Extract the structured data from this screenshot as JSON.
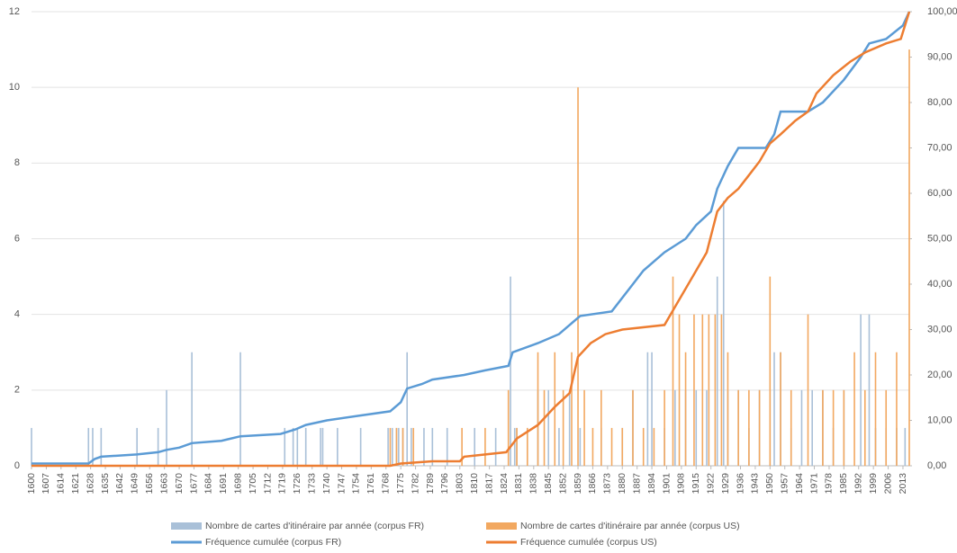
{
  "chart_data": {
    "type": "bar",
    "xlim": [
      1600,
      2016
    ],
    "xticks": [
      1600,
      1607,
      1614,
      1621,
      1628,
      1635,
      1642,
      1649,
      1656,
      1663,
      1670,
      1677,
      1684,
      1691,
      1698,
      1705,
      1712,
      1719,
      1726,
      1733,
      1740,
      1747,
      1754,
      1761,
      1768,
      1775,
      1782,
      1789,
      1796,
      1803,
      1810,
      1817,
      1824,
      1831,
      1838,
      1845,
      1852,
      1859,
      1866,
      1873,
      1880,
      1887,
      1894,
      1901,
      1908,
      1915,
      1922,
      1929,
      1936,
      1943,
      1950,
      1957,
      1964,
      1971,
      1978,
      1985,
      1992,
      1999,
      2006,
      2013
    ],
    "ylim": [
      0,
      12
    ],
    "yticks": [
      0,
      2,
      4,
      6,
      8,
      10,
      12
    ],
    "y2lim": [
      0,
      100
    ],
    "y2ticks": [
      {
        "value": 0,
        "label": "0,00"
      },
      {
        "value": 10,
        "label": "10,00"
      },
      {
        "value": 20,
        "label": "20,00"
      },
      {
        "value": 30,
        "label": "30,00"
      },
      {
        "value": 40,
        "label": "40,00"
      },
      {
        "value": 50,
        "label": "50,00"
      },
      {
        "value": 60,
        "label": "60,00"
      },
      {
        "value": 70,
        "label": "70,00"
      },
      {
        "value": 80,
        "label": "80,00"
      },
      {
        "value": 90,
        "label": "90,00"
      },
      {
        "value": 100,
        "label": "100,00"
      }
    ],
    "grid": true,
    "series": [
      {
        "name": "Nombre de cartes d'itinéraire par année (corpus FR)",
        "type": "bar",
        "color": "#a9c0d8",
        "x": [
          1600,
          1627,
          1629,
          1633,
          1650,
          1660,
          1664,
          1676,
          1699,
          1720,
          1724,
          1726,
          1730,
          1737,
          1738,
          1745,
          1756,
          1769,
          1771,
          1773,
          1774,
          1776,
          1778,
          1780,
          1786,
          1790,
          1797,
          1810,
          1820,
          1827,
          1829,
          1830,
          1835,
          1840,
          1845,
          1850,
          1855,
          1860,
          1870,
          1880,
          1885,
          1892,
          1894,
          1900,
          1905,
          1910,
          1915,
          1920,
          1925,
          1928,
          1930,
          1935,
          1940,
          1945,
          1950,
          1952,
          1955,
          1960,
          1965,
          1970,
          1975,
          1980,
          1985,
          1993,
          1997,
          2000,
          2005,
          2010,
          2014
        ],
        "values": [
          1,
          1,
          1,
          1,
          1,
          1,
          2,
          3,
          3,
          1,
          1,
          1,
          1,
          1,
          1,
          1,
          1,
          1,
          1,
          1,
          1,
          1,
          3,
          1,
          1,
          1,
          1,
          1,
          1,
          5,
          1,
          1,
          1,
          2,
          2,
          1,
          2,
          1,
          1,
          1,
          2,
          3,
          3,
          1,
          2,
          2,
          2,
          2,
          5,
          7,
          2,
          2,
          1,
          2,
          2,
          3,
          3,
          1,
          2,
          2,
          2,
          1,
          2,
          4,
          4,
          1,
          1,
          1,
          1
        ]
      },
      {
        "name": "Nombre de cartes d'itinéraire par année (corpus US)",
        "type": "bar",
        "color": "#f2a860",
        "x": [
          1770,
          1773,
          1776,
          1781,
          1804,
          1815,
          1826,
          1830,
          1835,
          1840,
          1843,
          1848,
          1852,
          1856,
          1859,
          1862,
          1866,
          1870,
          1875,
          1880,
          1885,
          1890,
          1895,
          1900,
          1904,
          1907,
          1910,
          1914,
          1918,
          1921,
          1924,
          1927,
          1930,
          1935,
          1940,
          1945,
          1950,
          1955,
          1960,
          1968,
          1975,
          1980,
          1985,
          1990,
          1995,
          2000,
          2005,
          2010,
          2016
        ],
        "values": [
          1,
          1,
          1,
          1,
          1,
          1,
          2,
          1,
          1,
          3,
          2,
          3,
          2,
          3,
          10,
          2,
          1,
          2,
          1,
          1,
          2,
          1,
          1,
          2,
          5,
          4,
          3,
          4,
          4,
          4,
          4,
          4,
          3,
          2,
          2,
          2,
          5,
          3,
          2,
          4,
          2,
          2,
          2,
          3,
          2,
          3,
          2,
          3,
          11
        ]
      },
      {
        "name": "Fréquence cumulée (corpus FR)",
        "type": "line",
        "axis": "y2",
        "color": "#5b9bd5",
        "x": [
          1600,
          1627,
          1630,
          1633,
          1650,
          1660,
          1664,
          1670,
          1676,
          1690,
          1699,
          1718,
          1725,
          1730,
          1740,
          1755,
          1770,
          1775,
          1778,
          1785,
          1790,
          1805,
          1815,
          1826,
          1828,
          1840,
          1850,
          1855,
          1860,
          1875,
          1885,
          1890,
          1900,
          1910,
          1915,
          1922,
          1925,
          1930,
          1935,
          1948,
          1952,
          1955,
          1968,
          1975,
          1985,
          1993,
          1997,
          2005,
          2013,
          2016
        ],
        "values": [
          0.5,
          0.5,
          1.5,
          2,
          2.5,
          3,
          3.5,
          4,
          5,
          5.5,
          6.5,
          7,
          8,
          9,
          10,
          11,
          12,
          14,
          17,
          18,
          19,
          20,
          21,
          22,
          25,
          27,
          29,
          31,
          33,
          34,
          40,
          43,
          47,
          50,
          53,
          56,
          61,
          66,
          70,
          70,
          73,
          78,
          78,
          80,
          85,
          90,
          93,
          94,
          97,
          100
        ]
      },
      {
        "name": "Fréquence cumulée (corpus US)",
        "type": "line",
        "axis": "y2",
        "color": "#ed7d31",
        "x": [
          1600,
          1770,
          1775,
          1790,
          1803,
          1805,
          1825,
          1830,
          1840,
          1848,
          1855,
          1859,
          1865,
          1872,
          1880,
          1900,
          1905,
          1910,
          1915,
          1920,
          1925,
          1930,
          1935,
          1940,
          1945,
          1950,
          1955,
          1962,
          1968,
          1972,
          1980,
          1988,
          1995,
          2005,
          2012,
          2016
        ],
        "values": [
          0,
          0,
          0.5,
          1,
          1,
          2,
          3,
          6,
          9,
          13,
          16,
          24,
          27,
          29,
          30,
          31,
          35,
          39,
          43,
          47,
          56,
          59,
          61,
          64,
          67,
          71,
          73,
          76,
          78,
          82,
          86,
          89,
          91,
          93,
          94,
          100
        ]
      }
    ]
  }
}
